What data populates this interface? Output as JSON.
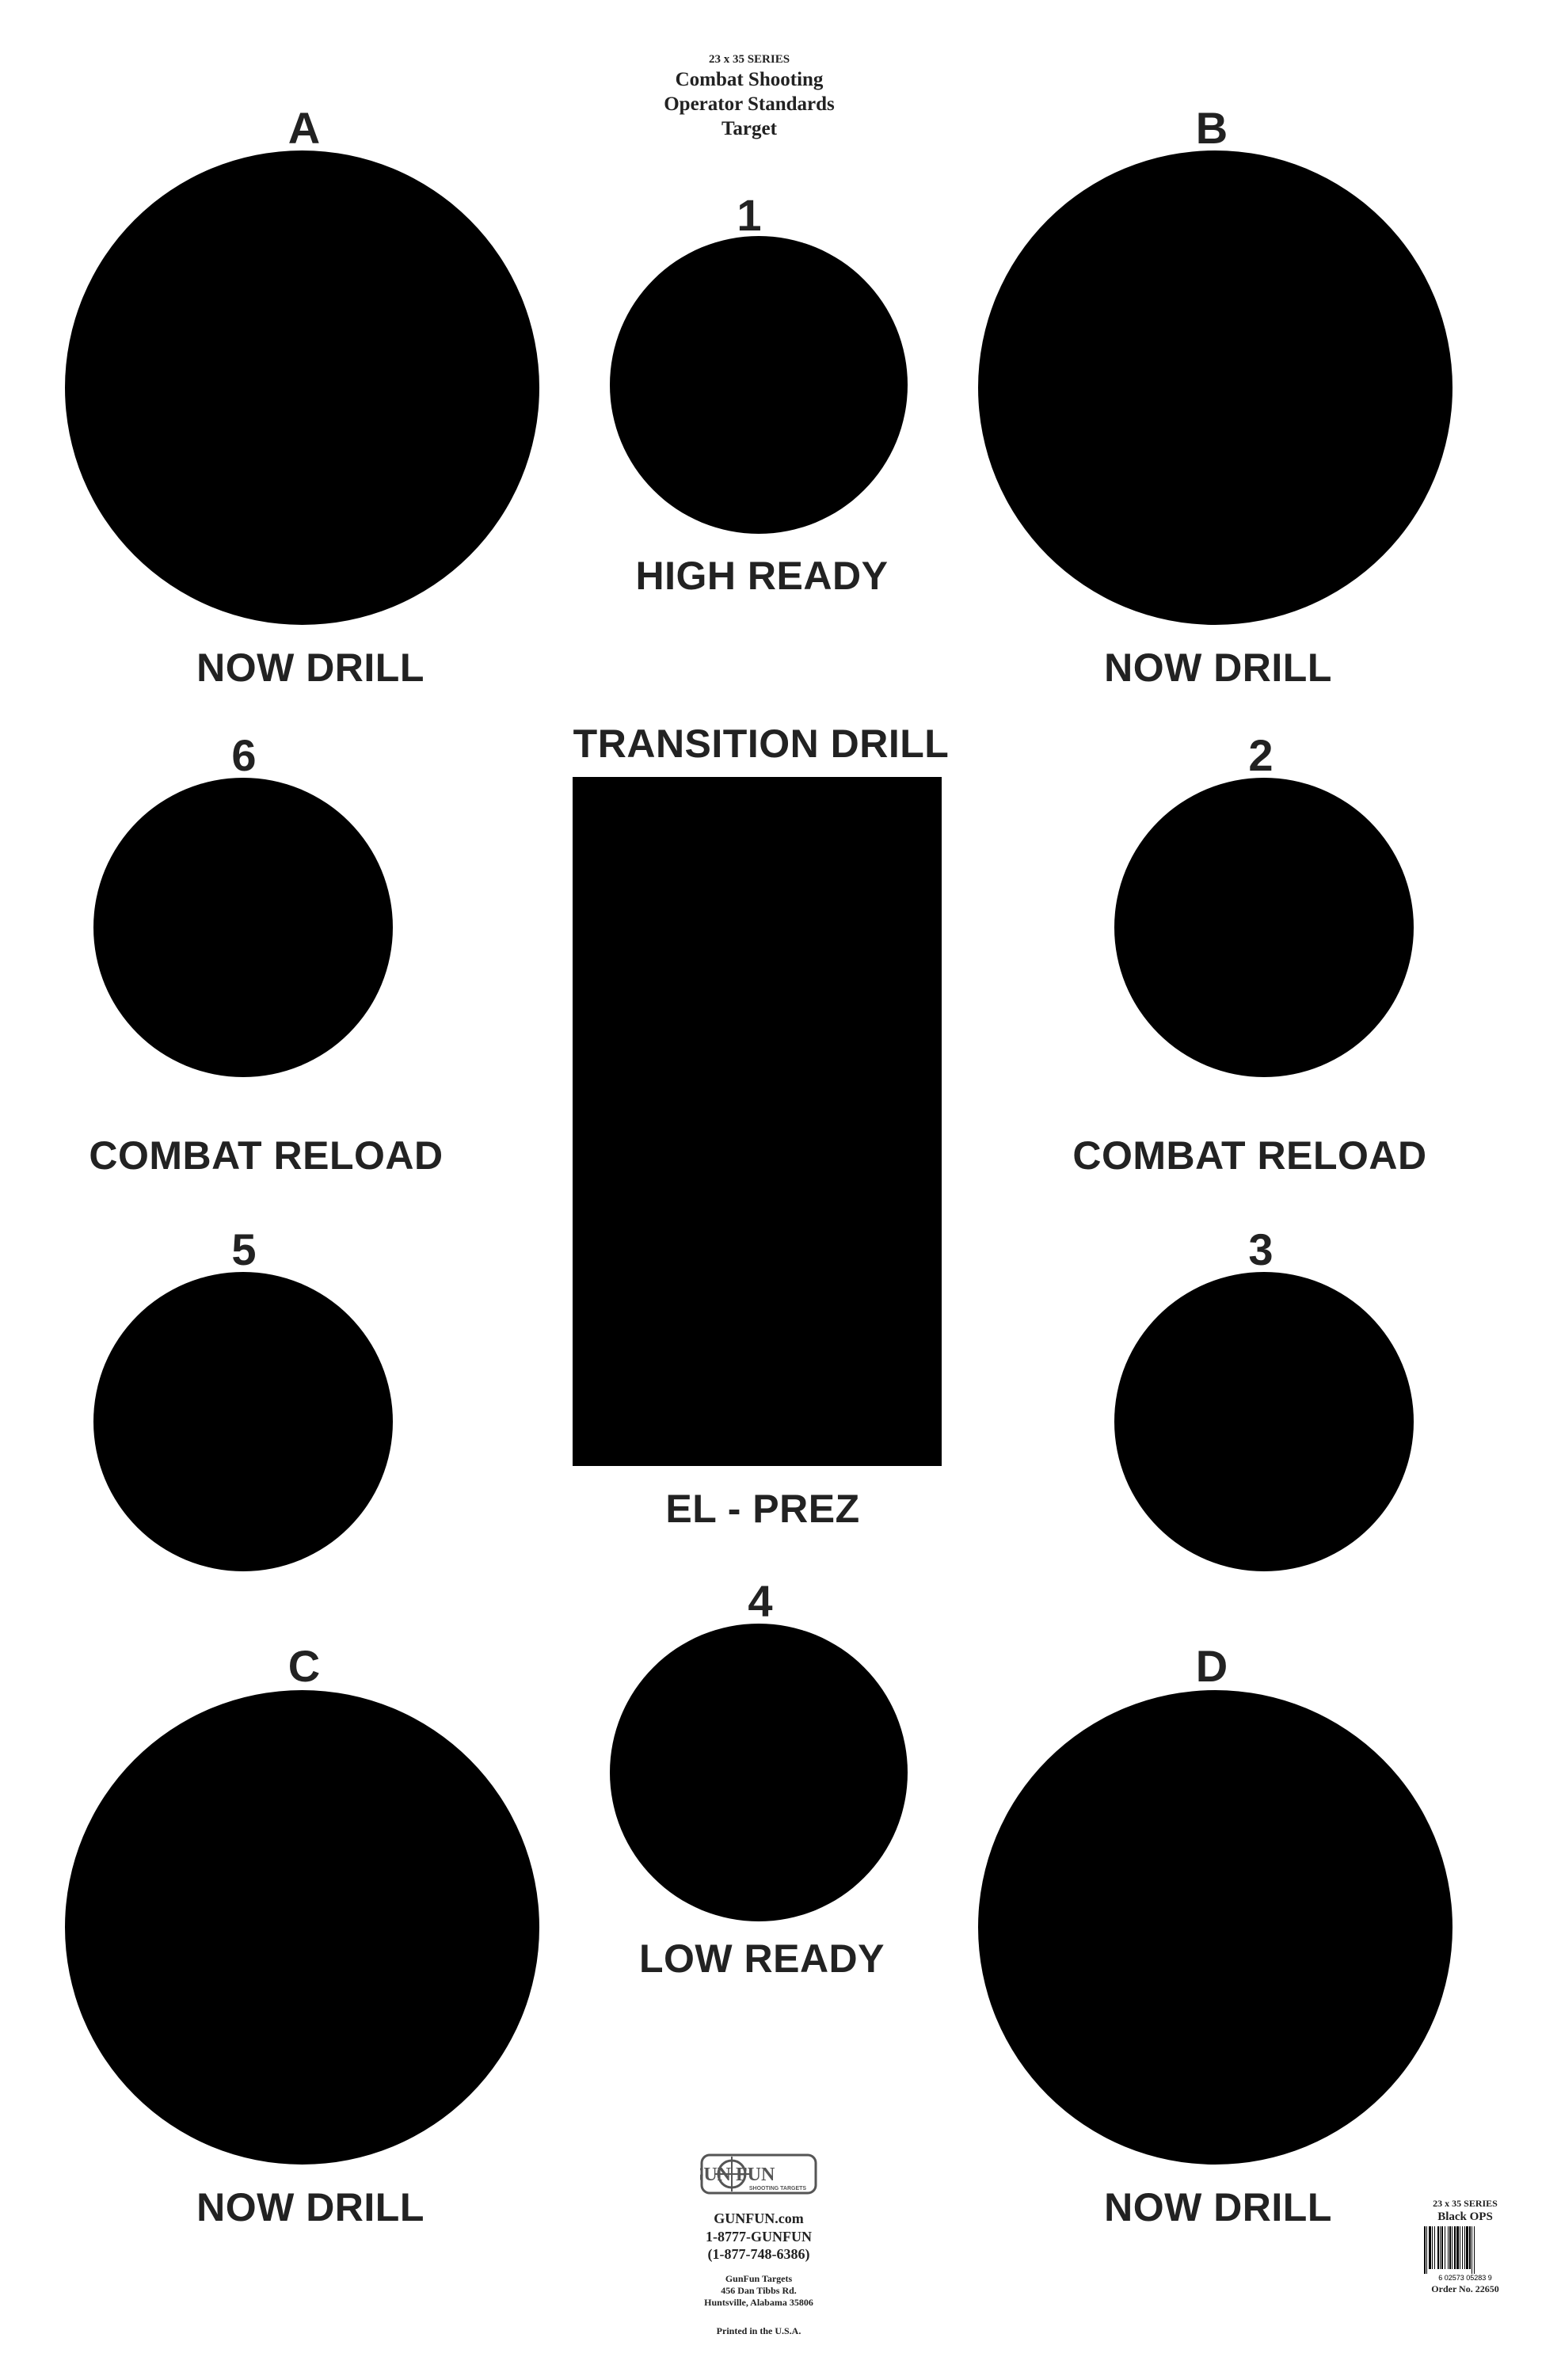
{
  "header": {
    "series": "23 x 35 SERIES",
    "title_lines": [
      "Combat Shooting",
      "Operator Standards",
      "Target"
    ]
  },
  "targets": {
    "a": {
      "letter": "A",
      "label": "NOW DRILL"
    },
    "b": {
      "letter": "B",
      "label": "NOW DRILL"
    },
    "c": {
      "letter": "C",
      "label": "NOW DRILL"
    },
    "d": {
      "letter": "D",
      "label": "NOW DRILL"
    },
    "t1": {
      "number": "1",
      "label": "HIGH READY"
    },
    "t2": {
      "number": "2",
      "label": "COMBAT RELOAD"
    },
    "t3": {
      "number": "3"
    },
    "t4": {
      "number": "4",
      "label": "LOW READY"
    },
    "t5": {
      "number": "5"
    },
    "t6": {
      "number": "6",
      "label": "COMBAT RELOAD"
    },
    "transition": {
      "top_label": "TRANSITION DRILL",
      "bottom_label": "EL - PREZ"
    }
  },
  "footer": {
    "logo_text": "GUN FUN",
    "logo_sub": "SHOOTING TARGETS",
    "website": "GUNFUN.com",
    "phone_word": "1-8777-GUNFUN",
    "phone_num": "(1-877-748-6386)",
    "company": "GunFun Targets",
    "street": "456 Dan Tibbs Rd.",
    "city": "Huntsville, Alabama 35806",
    "printed": "Printed in the U.S.A."
  },
  "product": {
    "series": "23 x 35 SERIES",
    "name": "Black OPS",
    "barcode_digits": "6   02573  05283   9",
    "order": "Order No. 22650"
  },
  "colors": {
    "ink": "#000000",
    "text": "#222222",
    "paper": "#ffffff"
  }
}
